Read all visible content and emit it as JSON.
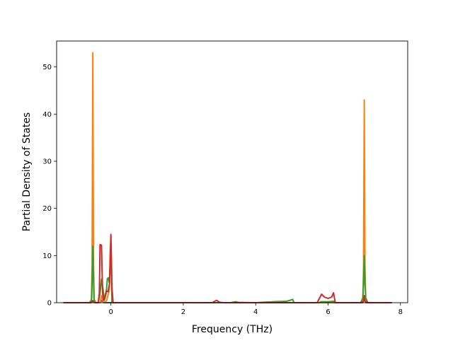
{
  "chart_data": {
    "type": "line",
    "title": "",
    "xlabel": "Frequency (THz)",
    "ylabel": "Partial Density of States",
    "xlim": [
      -1.5,
      8.2
    ],
    "ylim": [
      0,
      55.5
    ],
    "xticks": [
      0,
      2,
      4,
      6,
      8
    ],
    "yticks": [
      0,
      10,
      20,
      30,
      40,
      50
    ],
    "grid": false,
    "legend": "none",
    "series": [
      {
        "color": "#1f77b4",
        "points": [
          [
            -1.3,
            0
          ],
          [
            -0.55,
            0
          ],
          [
            -0.5,
            0.5
          ],
          [
            -0.45,
            0
          ],
          [
            -0.3,
            0
          ],
          [
            -0.25,
            0.5
          ],
          [
            -0.2,
            0
          ],
          [
            0,
            0
          ],
          [
            0.2,
            0
          ],
          [
            3,
            0
          ],
          [
            5,
            0
          ],
          [
            6,
            0
          ],
          [
            6.95,
            0
          ],
          [
            7,
            0.6
          ],
          [
            7.05,
            0
          ],
          [
            7.75,
            0
          ]
        ]
      },
      {
        "color": "#ff7f0e",
        "points": [
          [
            -1.3,
            0
          ],
          [
            -0.6,
            0
          ],
          [
            -0.54,
            0.6
          ],
          [
            -0.52,
            8
          ],
          [
            -0.5,
            53
          ],
          [
            -0.48,
            8
          ],
          [
            -0.46,
            0.6
          ],
          [
            -0.4,
            0
          ],
          [
            -0.3,
            0
          ],
          [
            -0.26,
            1.5
          ],
          [
            -0.24,
            1
          ],
          [
            -0.2,
            0
          ],
          [
            -0.12,
            0.4
          ],
          [
            -0.05,
            2.5
          ],
          [
            0,
            11
          ],
          [
            0.03,
            0
          ],
          [
            0.2,
            0
          ],
          [
            2,
            0
          ],
          [
            4,
            0
          ],
          [
            6,
            0
          ],
          [
            6.9,
            0
          ],
          [
            6.96,
            0.6
          ],
          [
            6.98,
            8
          ],
          [
            7,
            43
          ],
          [
            7.02,
            8
          ],
          [
            7.04,
            0.6
          ],
          [
            7.1,
            0
          ],
          [
            7.75,
            0
          ]
        ]
      },
      {
        "color": "#2ca02c",
        "points": [
          [
            -1.3,
            0
          ],
          [
            -0.56,
            0
          ],
          [
            -0.53,
            1
          ],
          [
            -0.5,
            12
          ],
          [
            -0.47,
            1
          ],
          [
            -0.45,
            0
          ],
          [
            -0.35,
            0
          ],
          [
            -0.3,
            2
          ],
          [
            -0.26,
            5
          ],
          [
            -0.22,
            3
          ],
          [
            -0.18,
            0.5
          ],
          [
            -0.13,
            2
          ],
          [
            -0.1,
            5
          ],
          [
            -0.07,
            5.3
          ],
          [
            -0.04,
            4
          ],
          [
            0,
            12
          ],
          [
            0.03,
            0
          ],
          [
            0.2,
            0
          ],
          [
            2,
            0
          ],
          [
            3.3,
            0
          ],
          [
            3.45,
            0.2
          ],
          [
            3.55,
            0.05
          ],
          [
            4,
            0
          ],
          [
            4.5,
            0.2
          ],
          [
            4.85,
            0.3
          ],
          [
            4.95,
            0.5
          ],
          [
            5.02,
            0.7
          ],
          [
            5.06,
            0
          ],
          [
            5.75,
            0
          ],
          [
            5.8,
            0.2
          ],
          [
            6,
            0.2
          ],
          [
            6.15,
            0.3
          ],
          [
            6.2,
            0
          ],
          [
            6.9,
            0
          ],
          [
            6.96,
            1
          ],
          [
            6.98,
            4
          ],
          [
            7,
            10
          ],
          [
            7.02,
            4
          ],
          [
            7.04,
            1
          ],
          [
            7.1,
            0
          ],
          [
            7.75,
            0
          ]
        ]
      },
      {
        "color": "#d62728",
        "points": [
          [
            -1.3,
            0
          ],
          [
            -0.56,
            0
          ],
          [
            -0.5,
            0.3
          ],
          [
            -0.45,
            0
          ],
          [
            -0.35,
            0
          ],
          [
            -0.32,
            2
          ],
          [
            -0.3,
            12.3
          ],
          [
            -0.26,
            12.2
          ],
          [
            -0.23,
            2
          ],
          [
            -0.2,
            0.5
          ],
          [
            -0.17,
            1
          ],
          [
            -0.13,
            2.5
          ],
          [
            -0.08,
            2.3
          ],
          [
            -0.04,
            4
          ],
          [
            -0.02,
            10
          ],
          [
            0,
            14.5
          ],
          [
            0.03,
            3
          ],
          [
            0.06,
            0
          ],
          [
            0.2,
            0
          ],
          [
            2.8,
            0
          ],
          [
            2.92,
            0.5
          ],
          [
            3,
            0.1
          ],
          [
            3.1,
            0
          ],
          [
            5.7,
            0
          ],
          [
            5.82,
            1.8
          ],
          [
            5.9,
            1.2
          ],
          [
            6,
            0.9
          ],
          [
            6.1,
            1.2
          ],
          [
            6.15,
            2.1
          ],
          [
            6.2,
            0
          ],
          [
            6.9,
            0
          ],
          [
            6.98,
            0.3
          ],
          [
            7,
            1.5
          ],
          [
            7.02,
            0.3
          ],
          [
            7.1,
            0
          ],
          [
            7.75,
            0
          ]
        ]
      }
    ]
  }
}
